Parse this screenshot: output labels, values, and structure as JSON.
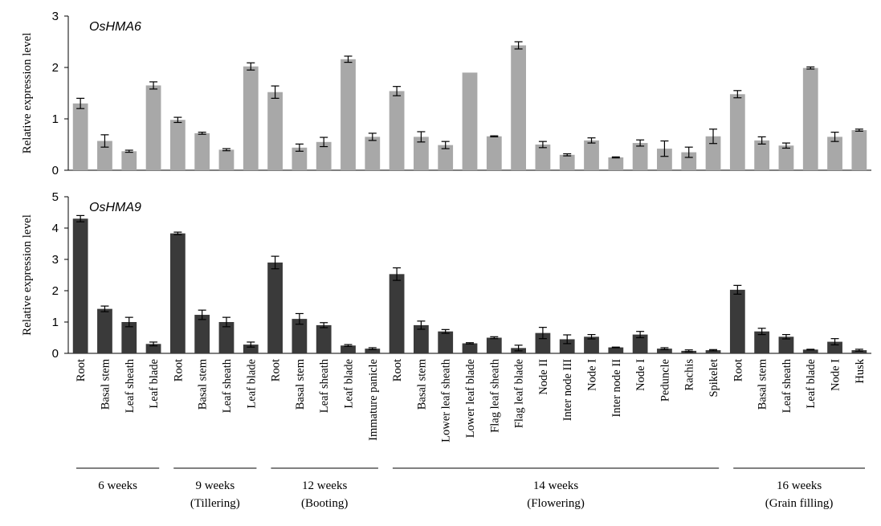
{
  "chart_data": {
    "type": "bar",
    "categories": [
      "Root",
      "Basal stem",
      "Leaf sheath",
      "Leaf blade",
      "Root",
      "Basal stem",
      "Leaf sheath",
      "Leaf blade",
      "Root",
      "Basal stem",
      "Leaf sheath",
      "Leaf blade",
      "Immature panicle",
      "Root",
      "Basal stem",
      "Lower leaf sheath",
      "Lower leaf blade",
      "Flag leaf sheath",
      "Flag leaf blade",
      "Node II",
      "Inter node III",
      "Node I",
      "Inter node II",
      "Node I",
      "Peduncle",
      "Rachis",
      "Spikelet",
      "Root",
      "Basal stem",
      "Leaf sheath",
      "Leaf blade",
      "Node I",
      "Husk"
    ],
    "stages": [
      {
        "label": "6 weeks",
        "sublabel": "",
        "start": 0,
        "end": 3
      },
      {
        "label": "9 weeks",
        "sublabel": "(Tillering)",
        "start": 4,
        "end": 7
      },
      {
        "label": "12 weeks",
        "sublabel": "(Booting)",
        "start": 8,
        "end": 12
      },
      {
        "label": "14 weeks",
        "sublabel": "(Flowering)",
        "start": 13,
        "end": 26
      },
      {
        "label": "16 weeks",
        "sublabel": "(Grain filling)",
        "start": 27,
        "end": 32
      }
    ],
    "panels": [
      {
        "title": "OsHMA6",
        "ylabel": "Relative expression level",
        "ylim": [
          0,
          3
        ],
        "yticks": [
          "0",
          "1",
          "2",
          "3"
        ],
        "color": "#a8a8a8",
        "values": [
          1.3,
          0.57,
          0.37,
          1.65,
          0.98,
          0.72,
          0.4,
          2.02,
          1.52,
          0.44,
          0.55,
          2.16,
          0.65,
          1.54,
          0.65,
          0.49,
          1.9,
          0.66,
          2.43,
          0.5,
          0.3,
          0.58,
          0.25,
          0.53,
          0.42,
          0.35,
          0.66,
          1.48,
          0.58,
          0.48,
          1.99,
          0.65,
          0.78
        ],
        "errors": [
          0.1,
          0.12,
          0.02,
          0.07,
          0.05,
          0.02,
          0.02,
          0.07,
          0.12,
          0.07,
          0.09,
          0.06,
          0.07,
          0.09,
          0.1,
          0.07,
          0.0,
          0.01,
          0.07,
          0.06,
          0.02,
          0.05,
          0.01,
          0.06,
          0.15,
          0.1,
          0.14,
          0.07,
          0.07,
          0.05,
          0.02,
          0.09,
          0.02
        ]
      },
      {
        "title": "OsHMA9",
        "ylabel": "Relative expression level",
        "ylim": [
          0,
          5
        ],
        "yticks": [
          "0",
          "1",
          "2",
          "3",
          "4",
          "5"
        ],
        "color": "#3a3a3a",
        "values": [
          4.3,
          1.42,
          1.0,
          0.3,
          3.83,
          1.23,
          1.0,
          0.28,
          2.9,
          1.1,
          0.9,
          0.25,
          0.15,
          2.53,
          0.9,
          0.7,
          0.32,
          0.5,
          0.17,
          0.65,
          0.45,
          0.53,
          0.19,
          0.6,
          0.15,
          0.08,
          0.1,
          2.03,
          0.7,
          0.53,
          0.12,
          0.37,
          0.1
        ],
        "errors": [
          0.1,
          0.09,
          0.15,
          0.06,
          0.04,
          0.15,
          0.15,
          0.08,
          0.2,
          0.17,
          0.08,
          0.03,
          0.03,
          0.2,
          0.13,
          0.06,
          0.02,
          0.03,
          0.09,
          0.18,
          0.14,
          0.07,
          0.01,
          0.1,
          0.03,
          0.03,
          0.02,
          0.14,
          0.1,
          0.07,
          0.01,
          0.1,
          0.03
        ]
      }
    ]
  }
}
